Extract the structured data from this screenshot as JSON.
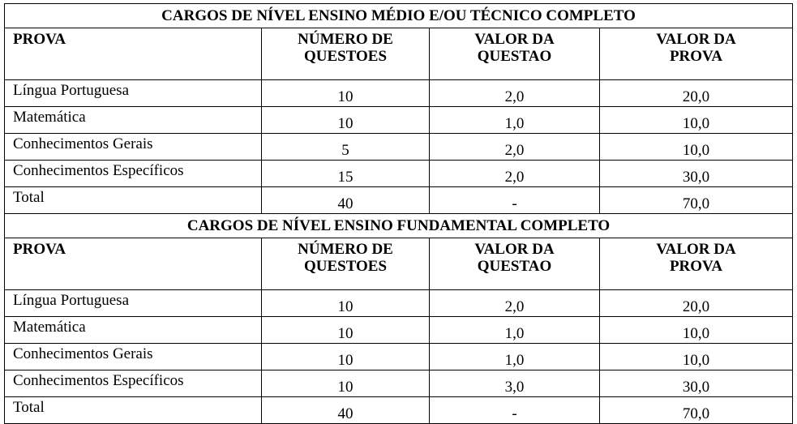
{
  "sections": [
    {
      "title": "CARGOS DE NÍVEL ENSINO MÉDIO E/OU TÉCNICO COMPLETO",
      "headers": [
        "PROVA",
        "NÚMERO DE QUESTOES",
        "VALOR DA QUESTAO",
        "VALOR DA PROVA"
      ],
      "rows": [
        [
          "Língua Portuguesa",
          "10",
          "2,0",
          "20,0"
        ],
        [
          "Matemática",
          "10",
          "1,0",
          "10,0"
        ],
        [
          "Conhecimentos Gerais",
          "5",
          "2,0",
          "10,0"
        ],
        [
          "Conhecimentos Específicos",
          "15",
          "2,0",
          "30,0"
        ],
        [
          "Total",
          "40",
          "-",
          "70,0"
        ]
      ]
    },
    {
      "title": "CARGOS DE NÍVEL ENSINO FUNDAMENTAL COMPLETO",
      "headers": [
        "PROVA",
        "NÚMERO DE QUESTOES",
        "VALOR DA QUESTAO",
        "VALOR DA PROVA"
      ],
      "rows": [
        [
          "Língua Portuguesa",
          "10",
          "2,0",
          "20,0"
        ],
        [
          "Matemática",
          "10",
          "1,0",
          "10,0"
        ],
        [
          "Conhecimentos Gerais",
          "10",
          "1,0",
          "10,0"
        ],
        [
          "Conhecimentos Específicos",
          "10",
          "3,0",
          "30,0"
        ],
        [
          "Total",
          "40",
          "-",
          "70,0"
        ]
      ]
    }
  ]
}
